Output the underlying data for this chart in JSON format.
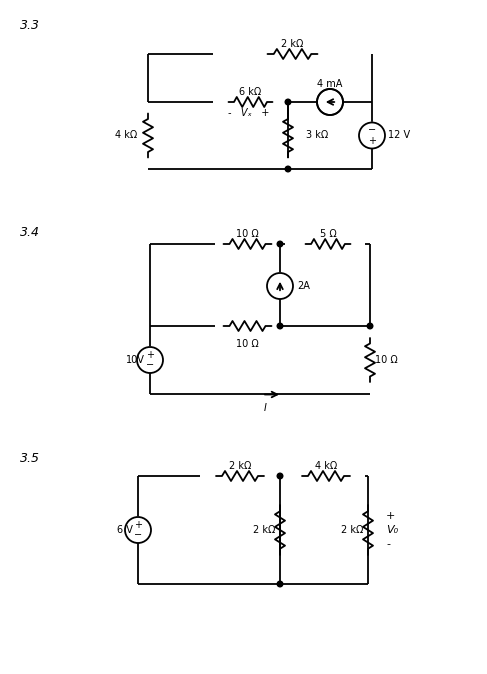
{
  "bg_color": "#ffffff",
  "text_color": "#000000",
  "line_color": "#000000",
  "line_width": 1.3,
  "fig_label_33": "3.3",
  "fig_label_34": "3.4",
  "fig_label_35": "3.5",
  "c33": {
    "top_res": "2 kΩ",
    "left_res": "4 kΩ",
    "mid_res": "6 kΩ",
    "bot_res": "3 kΩ",
    "cur_src": "4 mA",
    "volt_src": "12 V",
    "vx": "Vₓ"
  },
  "c34": {
    "top_left_res": "10 Ω",
    "top_right_res": "5 Ω",
    "mid_res": "10 Ω",
    "right_res": "10 Ω",
    "cur_src": "2A",
    "volt_src": "10V",
    "current_label": "I"
  },
  "c35": {
    "top_left_res": "2 kΩ",
    "top_right_res": "4 kΩ",
    "mid_left_res": "2 kΩ",
    "mid_right_res": "2 kΩ",
    "volt_src": "6 V",
    "volt_out": "V₀",
    "plus": "+",
    "minus": "-"
  }
}
